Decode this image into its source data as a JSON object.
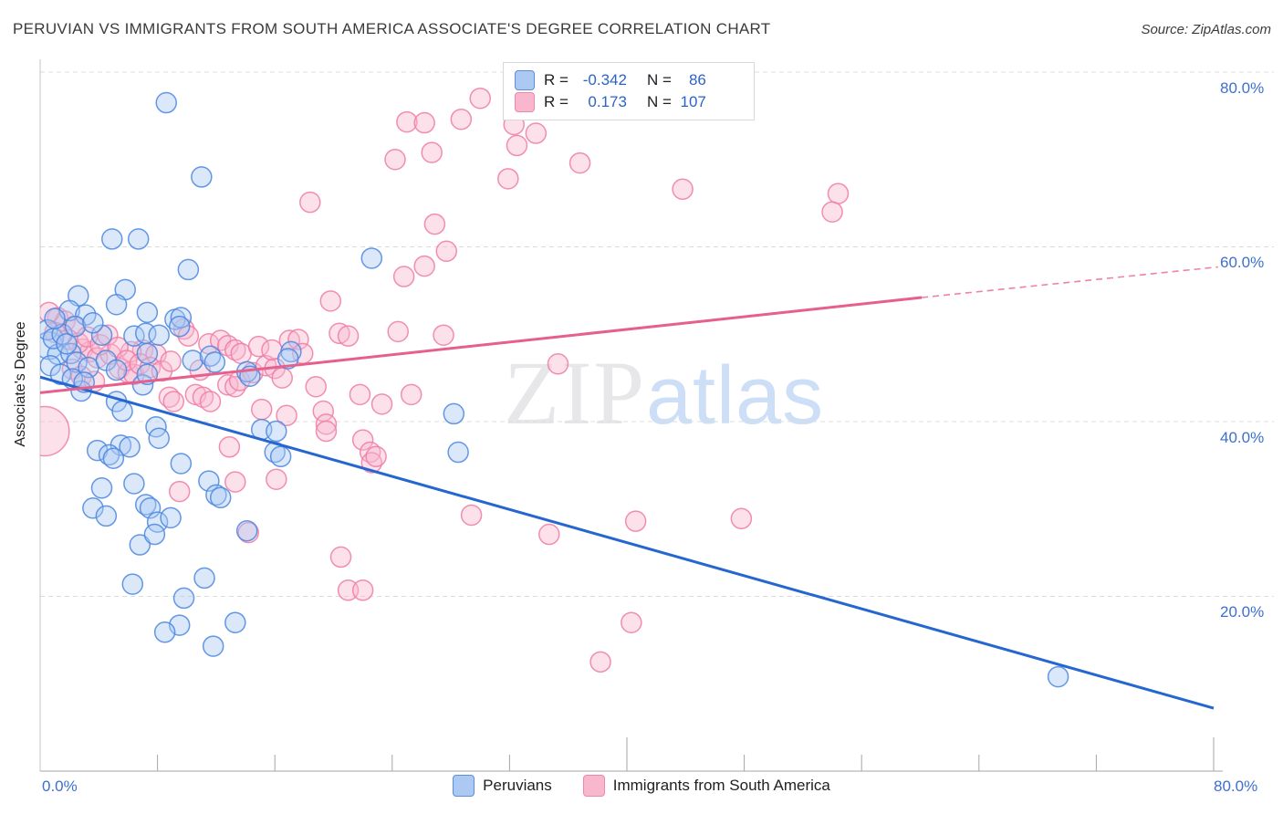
{
  "title": "PERUVIAN VS IMMIGRANTS FROM SOUTH AMERICA ASSOCIATE'S DEGREE CORRELATION CHART",
  "source": "Source: ZipAtlas.com",
  "watermark": {
    "zip": "ZIP",
    "atlas": "atlas"
  },
  "y_axis_title": "Associate's Degree",
  "axis_labels": {
    "x_left": "0.0%",
    "x_right": "80.0%",
    "y_right": [
      "80.0%",
      "60.0%",
      "40.0%",
      "20.0%"
    ]
  },
  "legend_box": {
    "rows": [
      {
        "series": "Peruvians",
        "r_label": "R =",
        "r_value": "-0.342",
        "n_label": "N =",
        "n_value": "86"
      },
      {
        "series": "Immigrants from South America",
        "r_label": "R =",
        "r_value": "0.173",
        "n_label": "N =",
        "n_value": "107"
      }
    ]
  },
  "bottom_legend": {
    "items": [
      {
        "label": "Peruvians"
      },
      {
        "label": "Immigrants from South America"
      }
    ]
  },
  "chart_data": {
    "type": "scatter",
    "title": "PERUVIAN VS IMMIGRANTS FROM SOUTH AMERICA ASSOCIATE'S DEGREE CORRELATION CHART",
    "xlabel": "",
    "ylabel": "Associate's Degree",
    "xlim": [
      0,
      80.3
    ],
    "ylim": [
      0,
      81.5
    ],
    "grid": "horizontal-dashed",
    "y_gridlines_percent": [
      80,
      60,
      40,
      20
    ],
    "x_minor_tick_step_percent": 8,
    "x_major_ticks_percent": [
      40,
      80
    ],
    "legend_position": "top-center",
    "series": [
      {
        "name": "Peruvians",
        "R": -0.342,
        "N": 86,
        "fill": "#a9c7f2",
        "stroke": "#4a86e0",
        "points": [
          [
            8.6,
            76.5
          ],
          [
            11,
            68
          ],
          [
            4.9,
            60.9
          ],
          [
            6.7,
            60.9
          ],
          [
            22.6,
            58.7
          ],
          [
            10.1,
            57.4
          ],
          [
            5.8,
            55.1
          ],
          [
            2.6,
            54.4
          ],
          [
            2,
            52.7
          ],
          [
            3.1,
            52.2
          ],
          [
            5.2,
            53.4
          ],
          [
            7.3,
            52.5
          ],
          [
            9.2,
            51.7
          ],
          [
            9.6,
            51.9
          ],
          [
            9.5,
            50.9
          ],
          [
            0.6,
            48.7,
            15
          ],
          [
            1.2,
            47.7
          ],
          [
            2.1,
            47.8
          ],
          [
            2.5,
            46.8
          ],
          [
            3.3,
            46.2
          ],
          [
            4.2,
            49.9
          ],
          [
            4.5,
            47
          ],
          [
            5.2,
            45.9
          ],
          [
            6.4,
            49.8
          ],
          [
            7.2,
            50.1
          ],
          [
            8.1,
            49.9
          ],
          [
            7.3,
            47.8
          ],
          [
            10.4,
            47
          ],
          [
            11.6,
            47.5
          ],
          [
            11.9,
            46.8
          ],
          [
            14.1,
            45.7
          ],
          [
            14.3,
            45.2
          ],
          [
            17.1,
            48
          ],
          [
            16.9,
            47.2
          ],
          [
            2.8,
            43.5
          ],
          [
            5.2,
            42.3
          ],
          [
            5.6,
            41.2
          ],
          [
            7,
            44.2
          ],
          [
            7.3,
            45.4
          ],
          [
            7.9,
            39.4
          ],
          [
            8.1,
            38.1
          ],
          [
            3.9,
            36.7
          ],
          [
            5.5,
            37.3
          ],
          [
            6.1,
            37.1
          ],
          [
            4.7,
            36.2
          ],
          [
            5,
            35.8
          ],
          [
            9.6,
            35.2
          ],
          [
            4.2,
            32.4
          ],
          [
            6.4,
            32.9
          ],
          [
            3.6,
            30.1
          ],
          [
            4.5,
            29.2
          ],
          [
            7.2,
            30.5
          ],
          [
            7.5,
            30.1
          ],
          [
            8,
            28.5
          ],
          [
            8.9,
            29
          ],
          [
            11.5,
            33.2
          ],
          [
            12,
            31.6
          ],
          [
            12.3,
            31.3
          ],
          [
            15.1,
            39.1
          ],
          [
            16.1,
            38.9
          ],
          [
            16,
            36.5
          ],
          [
            16.4,
            36
          ],
          [
            28.2,
            40.9
          ],
          [
            28.5,
            36.5
          ],
          [
            14.1,
            27.5
          ],
          [
            6.8,
            25.9
          ],
          [
            7.8,
            27.1
          ],
          [
            6.3,
            21.4
          ],
          [
            11.2,
            22.1
          ],
          [
            9.8,
            19.8
          ],
          [
            9.5,
            16.7
          ],
          [
            8.5,
            15.9
          ],
          [
            13.3,
            17
          ],
          [
            11.8,
            14.3
          ],
          [
            69.4,
            10.8
          ],
          [
            0.5,
            50.5
          ],
          [
            0.9,
            49.5
          ],
          [
            1.5,
            50
          ],
          [
            1.8,
            48.9
          ],
          [
            0.7,
            46.4
          ],
          [
            1.4,
            45.4
          ],
          [
            2.2,
            44.9
          ],
          [
            3,
            44.5
          ],
          [
            2.4,
            50.9
          ],
          [
            3.6,
            51.3
          ],
          [
            1,
            51.8
          ]
        ]
      },
      {
        "name": "Immigrants from South America",
        "R": 0.173,
        "N": 107,
        "fill": "#f8b8cf",
        "stroke": "#f07ba3",
        "points": [
          [
            25,
            74.3
          ],
          [
            26.2,
            74.2
          ],
          [
            24.2,
            70
          ],
          [
            26.7,
            70.8
          ],
          [
            18.4,
            65.1
          ],
          [
            24.8,
            56.6
          ],
          [
            26.2,
            57.8
          ],
          [
            30,
            77
          ],
          [
            28.7,
            74.6
          ],
          [
            32.3,
            74
          ],
          [
            33.8,
            73
          ],
          [
            32.5,
            71.6
          ],
          [
            36.8,
            69.6
          ],
          [
            31.9,
            67.8
          ],
          [
            43.8,
            66.6
          ],
          [
            26.9,
            62.6
          ],
          [
            27.7,
            59.5
          ],
          [
            54.4,
            66.1
          ],
          [
            54,
            64
          ],
          [
            27.5,
            49.9
          ],
          [
            35.3,
            46.6
          ],
          [
            29.4,
            29.3
          ],
          [
            34.7,
            27.1
          ],
          [
            40.6,
            28.6
          ],
          [
            47.8,
            28.9
          ],
          [
            40.3,
            17
          ],
          [
            38.2,
            12.5
          ],
          [
            20.5,
            24.5
          ],
          [
            21,
            20.7
          ],
          [
            22,
            20.7
          ],
          [
            1.2,
            51.9
          ],
          [
            1.7,
            51.5
          ],
          [
            2.3,
            50.9
          ],
          [
            2.9,
            48.3
          ],
          [
            3.4,
            48
          ],
          [
            3.9,
            47.3
          ],
          [
            4.8,
            47.7
          ],
          [
            5.4,
            46.1
          ],
          [
            6,
            45.6
          ],
          [
            6.4,
            45.4
          ],
          [
            7,
            48.2
          ],
          [
            7.9,
            47.7
          ],
          [
            6.2,
            48
          ],
          [
            9.8,
            50.6
          ],
          [
            10.1,
            49.8
          ],
          [
            11.5,
            48.9
          ],
          [
            12.3,
            49.3
          ],
          [
            12.8,
            48.7
          ],
          [
            13.3,
            48.2
          ],
          [
            13.7,
            47.8
          ],
          [
            8.8,
            42.8
          ],
          [
            9.1,
            42.3
          ],
          [
            10.6,
            43.1
          ],
          [
            11.1,
            42.8
          ],
          [
            11.6,
            42.3
          ],
          [
            12.8,
            44.2
          ],
          [
            13.3,
            44
          ],
          [
            13.6,
            44.7
          ],
          [
            14.5,
            45.6
          ],
          [
            15.4,
            46.4
          ],
          [
            16,
            46.1
          ],
          [
            17,
            49.3
          ],
          [
            17.6,
            49.4
          ],
          [
            17.9,
            47.8
          ],
          [
            18.8,
            44
          ],
          [
            19.3,
            41.2
          ],
          [
            19.5,
            39.7
          ],
          [
            19.8,
            53.8
          ],
          [
            20.4,
            50.1
          ],
          [
            21,
            49.8
          ],
          [
            24.4,
            50.3
          ],
          [
            25.3,
            43.1
          ],
          [
            23.3,
            42
          ],
          [
            21.8,
            43.1
          ],
          [
            15.1,
            41.4
          ],
          [
            16.8,
            40.7
          ],
          [
            19.5,
            38.9
          ],
          [
            22,
            37.9
          ],
          [
            22.5,
            36.5
          ],
          [
            22.6,
            35.3
          ],
          [
            22.9,
            36
          ],
          [
            12.9,
            37.1
          ],
          [
            9.5,
            32
          ],
          [
            13.3,
            33.1
          ],
          [
            16.1,
            33.4
          ],
          [
            0.3,
            38.9,
            27
          ],
          [
            14.2,
            27.3
          ],
          [
            0.6,
            52.5
          ],
          [
            1,
            50.2
          ],
          [
            1.9,
            49.4
          ],
          [
            2.6,
            49
          ],
          [
            3.2,
            49.7
          ],
          [
            4.1,
            48.8
          ],
          [
            4.6,
            49.9
          ],
          [
            5.3,
            48.5
          ],
          [
            5.9,
            47
          ],
          [
            6.8,
            46.6
          ],
          [
            7.5,
            46.2
          ],
          [
            8.3,
            45.8
          ],
          [
            8.9,
            46.9
          ],
          [
            2.2,
            46
          ],
          [
            2.8,
            45.2
          ],
          [
            3.7,
            44.6
          ],
          [
            10.9,
            45.9
          ],
          [
            14.9,
            48.6
          ],
          [
            15.8,
            48.2
          ],
          [
            16.5,
            45
          ]
        ]
      }
    ],
    "trend_lines": [
      {
        "series": "Peruvians",
        "style": "solid",
        "color": "#2667cf",
        "width": 3,
        "x1": 0,
        "y1": 45.1,
        "x2": 80,
        "y2": 7.2
      },
      {
        "series": "Immigrants from South America",
        "style": "solid",
        "color": "#e5608d",
        "width": 3,
        "x1": 0,
        "y1": 43.3,
        "x2": 60.1,
        "y2": 54.2
      },
      {
        "series": "Immigrants from South America",
        "style": "dashed",
        "color": "#ee82a8",
        "width": 1.6,
        "x1": 60.1,
        "y1": 54.2,
        "x2": 80.3,
        "y2": 57.7
      }
    ]
  }
}
